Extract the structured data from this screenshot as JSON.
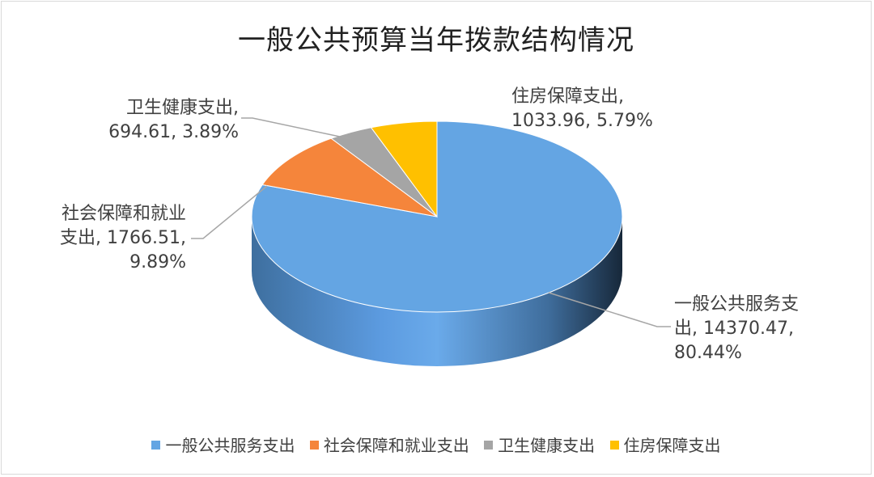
{
  "chart_data": {
    "type": "pie",
    "title": "一般公共预算当年拨款结构情况",
    "slices": [
      {
        "name": "一般公共服务支出",
        "value": 14370.47,
        "percent": 80.44,
        "color": "#64a5e3",
        "label_lines": [
          "一般公共服务支",
          "出, 14370.47,",
          "80.44%"
        ]
      },
      {
        "name": "社会保障和就业支出",
        "value": 1766.51,
        "percent": 9.89,
        "color": "#f5853b",
        "label_lines": [
          "社会保障和就业",
          "支出, 1766.51,",
          "9.89%"
        ]
      },
      {
        "name": "卫生健康支出",
        "value": 694.61,
        "percent": 3.89,
        "color": "#a5a5a5",
        "label_lines": [
          "卫生健康支出,",
          "694.61, 3.89%"
        ]
      },
      {
        "name": "住房保障支出",
        "value": 1033.96,
        "percent": 5.79,
        "color": "#ffc000",
        "label_lines": [
          "住房保障支出,",
          "1033.96, 5.79%"
        ]
      }
    ],
    "legend_position": "bottom"
  }
}
